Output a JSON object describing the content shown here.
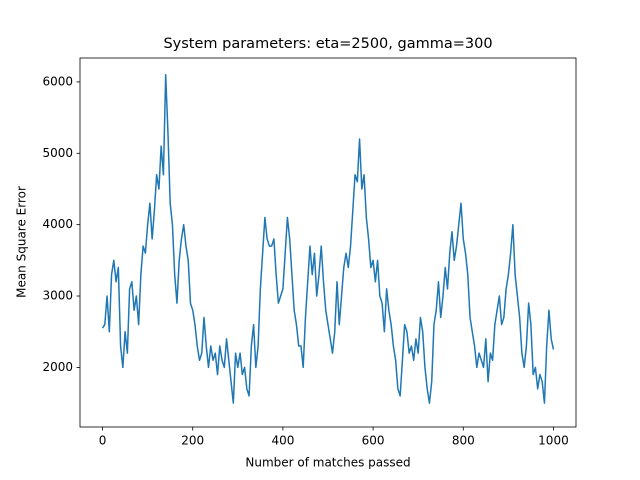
{
  "chart_data": {
    "type": "line",
    "title": "System parameters: eta=2500, gamma=300",
    "xlabel": "Number of matches passed",
    "ylabel": "Mean Square Error",
    "x": [
      0,
      5,
      10,
      15,
      20,
      25,
      30,
      35,
      40,
      45,
      50,
      55,
      60,
      65,
      70,
      75,
      80,
      85,
      90,
      95,
      100,
      105,
      110,
      115,
      120,
      125,
      130,
      135,
      140,
      145,
      150,
      155,
      160,
      165,
      170,
      175,
      180,
      185,
      190,
      195,
      200,
      205,
      210,
      215,
      220,
      225,
      230,
      235,
      240,
      245,
      250,
      255,
      260,
      265,
      270,
      275,
      280,
      285,
      290,
      295,
      300,
      305,
      310,
      315,
      320,
      325,
      330,
      335,
      340,
      345,
      350,
      355,
      360,
      365,
      370,
      375,
      380,
      385,
      390,
      395,
      400,
      405,
      410,
      415,
      420,
      425,
      430,
      435,
      440,
      445,
      450,
      455,
      460,
      465,
      470,
      475,
      480,
      485,
      490,
      495,
      500,
      505,
      510,
      515,
      520,
      525,
      530,
      535,
      540,
      545,
      550,
      555,
      560,
      565,
      570,
      575,
      580,
      585,
      590,
      595,
      600,
      605,
      610,
      615,
      620,
      625,
      630,
      635,
      640,
      645,
      650,
      655,
      660,
      665,
      670,
      675,
      680,
      685,
      690,
      695,
      700,
      705,
      710,
      715,
      720,
      725,
      730,
      735,
      740,
      745,
      750,
      755,
      760,
      765,
      770,
      775,
      780,
      785,
      790,
      795,
      800,
      805,
      810,
      815,
      820,
      825,
      830,
      835,
      840,
      845,
      850,
      855,
      860,
      865,
      870,
      875,
      880,
      885,
      890,
      895,
      900,
      905,
      910,
      915,
      920,
      925,
      930,
      935,
      940,
      945,
      950,
      955,
      960,
      965,
      970,
      975,
      980,
      985,
      990,
      995,
      1000
    ],
    "series": [
      {
        "color": "#1f77b4",
        "values": [
          2550,
          2600,
          3000,
          2500,
          3300,
          3500,
          3200,
          3400,
          2300,
          2000,
          2500,
          2200,
          3100,
          3200,
          2800,
          3000,
          2600,
          3300,
          3700,
          3600,
          4000,
          4300,
          3800,
          4200,
          4700,
          4500,
          5100,
          4700,
          6100,
          5300,
          4300,
          4000,
          3300,
          2900,
          3500,
          3800,
          4000,
          3700,
          3500,
          2900,
          2800,
          2600,
          2300,
          2100,
          2200,
          2700,
          2300,
          2000,
          2300,
          2100,
          2200,
          1900,
          2300,
          2100,
          2000,
          2400,
          2100,
          1800,
          1500,
          2200,
          2000,
          2200,
          1900,
          2000,
          1700,
          1600,
          2300,
          2600,
          2000,
          2300,
          3100,
          3600,
          4100,
          3800,
          3700,
          3700,
          3800,
          3300,
          2900,
          3000,
          3100,
          3600,
          4100,
          3800,
          3300,
          2800,
          2600,
          2300,
          2300,
          2000,
          2700,
          3200,
          3700,
          3300,
          3600,
          3000,
          3300,
          3700,
          3200,
          2800,
          2600,
          2400,
          2200,
          2500,
          3200,
          2600,
          3000,
          3400,
          3600,
          3400,
          3700,
          4200,
          4700,
          4600,
          5200,
          4500,
          4700,
          4100,
          3800,
          3400,
          3500,
          3200,
          3500,
          3000,
          2900,
          2500,
          3100,
          2800,
          2600,
          2300,
          2100,
          1700,
          1600,
          2100,
          2600,
          2500,
          2200,
          2300,
          2100,
          2400,
          2200,
          2700,
          2500,
          2000,
          1700,
          1500,
          1800,
          2600,
          2800,
          3200,
          2700,
          3000,
          3400,
          3100,
          3600,
          3900,
          3500,
          3700,
          4000,
          4300,
          3800,
          3600,
          3300,
          2700,
          2500,
          2300,
          2000,
          2200,
          2100,
          2000,
          2400,
          1800,
          2200,
          2100,
          2600,
          2800,
          3000,
          2600,
          2700,
          3100,
          3300,
          3600,
          4000,
          3300,
          3000,
          2700,
          2200,
          2000,
          2300,
          2900,
          2600,
          1900,
          2000,
          1700,
          1900,
          1800,
          1500,
          2300,
          2800,
          2400,
          2250
        ]
      }
    ],
    "xlim": [
      -50,
      1050
    ],
    "xticks": [
      0,
      200,
      400,
      600,
      800,
      1000
    ],
    "ylim": [
      1165,
      6335
    ],
    "yticks": [
      2000,
      3000,
      4000,
      5000,
      6000
    ]
  }
}
